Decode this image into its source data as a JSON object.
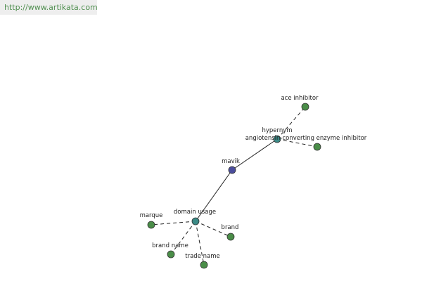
{
  "header": {
    "url": "http://www.artikata.com"
  },
  "nodes": [
    {
      "label": "mavik"
    },
    {
      "label": "hypernym"
    },
    {
      "label": "angiotensin-converting enzyme inhibitor"
    },
    {
      "label": "ace inhibitor"
    },
    {
      "label": "domain usage"
    },
    {
      "label": "marque"
    },
    {
      "label": "brand"
    },
    {
      "label": "brand name"
    },
    {
      "label": "trade name"
    }
  ]
}
